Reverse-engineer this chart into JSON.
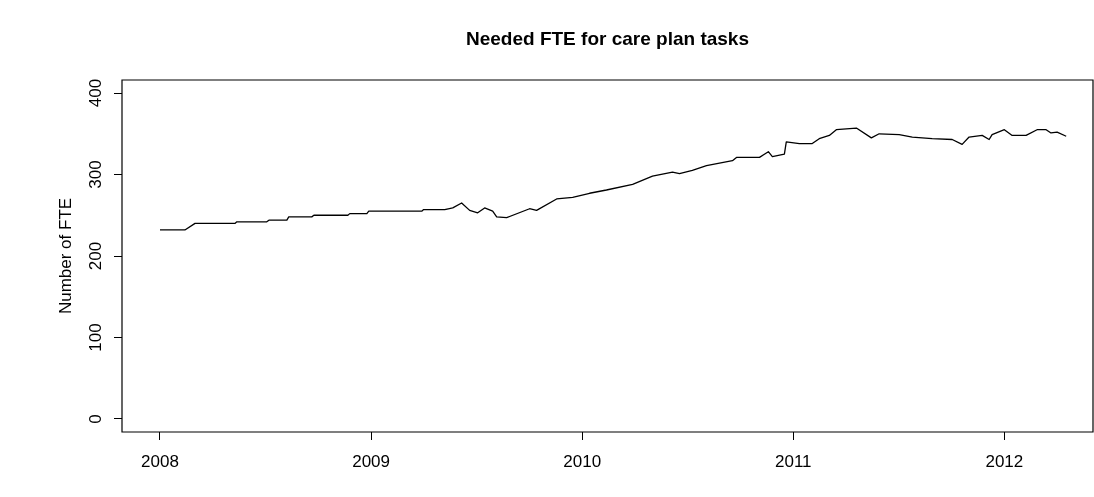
{
  "chart_data": {
    "type": "line",
    "title": "Needed FTE for care plan tasks",
    "ylabel": "Number of FTE",
    "x": [
      2008.0,
      2008.118,
      2008.166,
      2008.355,
      2008.364,
      2008.506,
      2008.516,
      2008.601,
      2008.61,
      2008.719,
      2008.729,
      2008.89,
      2008.899,
      2008.98,
      2008.989,
      2009.24,
      2009.249,
      2009.349,
      2009.387,
      2009.429,
      2009.467,
      2009.505,
      2009.538,
      2009.576,
      2009.595,
      2009.642,
      2009.751,
      2009.784,
      2009.879,
      2009.955,
      2010.035,
      2010.115,
      2010.239,
      2010.333,
      2010.428,
      2010.461,
      2010.522,
      2010.589,
      2010.712,
      2010.731,
      2010.84,
      2010.882,
      2010.901,
      2010.958,
      2010.967,
      2011.029,
      2011.09,
      2011.123,
      2011.171,
      2011.204,
      2011.299,
      2011.37,
      2011.407,
      2011.502,
      2011.564,
      2011.658,
      2011.753,
      2011.8,
      2011.833,
      2011.895,
      2011.928,
      2011.942,
      2012.0,
      2012.037,
      2012.103,
      2012.155,
      2012.198,
      2012.221,
      2012.25,
      2012.293
    ],
    "series": [
      {
        "color": "#000000",
        "values": [
          232,
          232,
          240,
          240,
          242,
          242,
          244,
          244,
          248,
          248,
          250,
          250,
          252,
          252,
          255,
          255,
          257,
          257,
          259,
          265,
          256,
          253,
          259,
          255,
          248,
          247,
          258,
          256,
          270,
          272,
          277,
          281,
          288,
          298,
          303,
          301,
          305,
          311,
          317,
          321,
          321,
          328,
          322,
          325,
          340,
          338,
          338,
          344,
          348,
          355,
          357,
          345,
          350,
          349,
          346,
          344,
          343,
          337,
          346,
          348,
          343,
          349,
          355,
          348,
          348,
          355,
          355,
          351,
          352,
          347
        ]
      }
    ],
    "xlim": [
      2007.82,
      2012.42
    ],
    "xticks": [
      2008,
      2009,
      2010,
      2011,
      2012
    ],
    "ylim": [
      -16,
      416
    ],
    "yticks": [
      0,
      100,
      200,
      300,
      400
    ],
    "grid": false,
    "legend": false,
    "marker": "none",
    "line_style": "solid"
  }
}
